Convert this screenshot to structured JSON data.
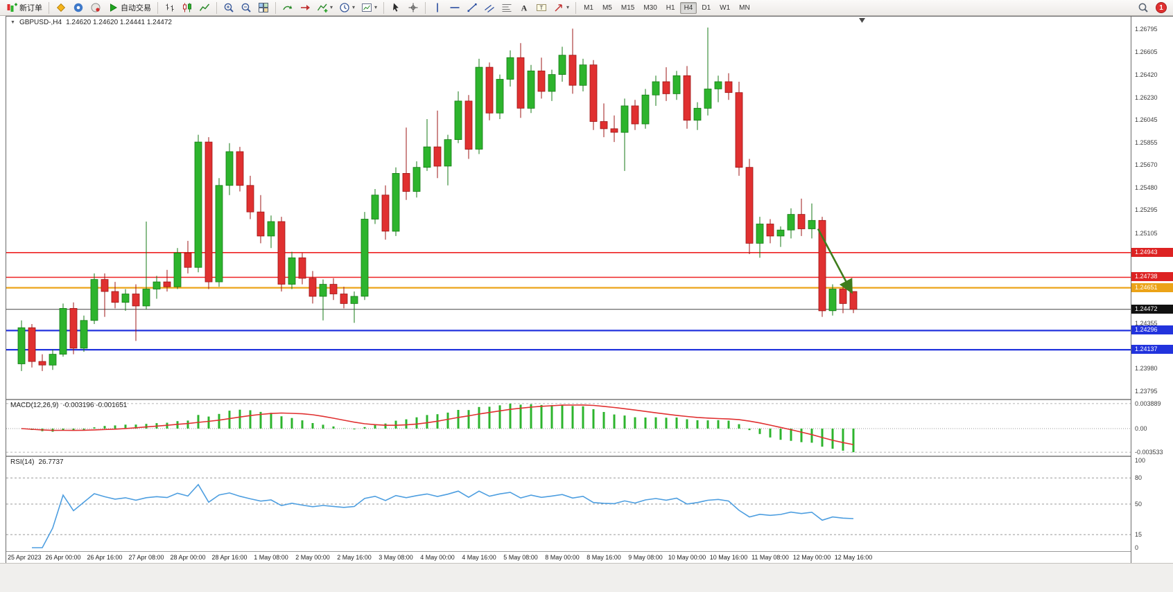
{
  "toolbar": {
    "new_order_label": "新订单",
    "autotrading_label": "自动交易",
    "timeframes": [
      "M1",
      "M5",
      "M15",
      "M30",
      "H1",
      "H4",
      "D1",
      "W1",
      "MN"
    ],
    "active_timeframe": "H4",
    "notification_count": "1"
  },
  "chart": {
    "symbol": "GBPUSD-,H4",
    "ohlc": "1.24620 1.24620 1.24441 1.24472",
    "yrange": {
      "max": 1.269,
      "min": 1.2373
    },
    "colors": {
      "up": "#2db42d",
      "up_edge": "#157a15",
      "down": "#e03030",
      "down_edge": "#9c1414",
      "arrow": "#3e7d1c"
    },
    "price_axis": [
      "1.26795",
      "1.26605",
      "1.26420",
      "1.26230",
      "1.26045",
      "1.25855",
      "1.25670",
      "1.25480",
      "1.25295",
      "1.25105",
      "1.24355",
      "1.23980",
      "1.23795"
    ],
    "price_tags": [
      {
        "t": "1.24943",
        "bg": "#dd2222",
        "line": "#ee2222",
        "lw": 1.6
      },
      {
        "t": "1.24738",
        "bg": "#dd2222",
        "line": "#ee2222",
        "lw": 1.6
      },
      {
        "t": "1.24651",
        "bg": "#eca318",
        "line": "#eca318",
        "lw": 2.2
      },
      {
        "t": "1.24472",
        "bg": "#111111",
        "line": "#444444",
        "lw": 1
      },
      {
        "t": "1.24296",
        "bg": "#2233dd",
        "line": "#2233dd",
        "lw": 2.2
      },
      {
        "t": "1.24137",
        "bg": "#2233dd",
        "line": "#2233dd",
        "lw": 2.2
      }
    ],
    "arrow": {
      "i1": 76.6,
      "p1": 1.2514,
      "i2": 79.8,
      "p2": 1.2462
    },
    "candles": [
      [
        1.2402,
        1.2438,
        1.2396,
        1.2432
      ],
      [
        1.2432,
        1.2435,
        1.2399,
        1.2404
      ],
      [
        1.2404,
        1.241,
        1.2396,
        1.2401
      ],
      [
        1.2401,
        1.2414,
        1.2397,
        1.241
      ],
      [
        1.241,
        1.2452,
        1.2408,
        1.2448
      ],
      [
        1.2448,
        1.2453,
        1.241,
        1.2415
      ],
      [
        1.2415,
        1.2442,
        1.2412,
        1.2438
      ],
      [
        1.2438,
        1.2477,
        1.2435,
        1.2472
      ],
      [
        1.2472,
        1.2477,
        1.2441,
        1.2462
      ],
      [
        1.2462,
        1.247,
        1.2448,
        1.2453
      ],
      [
        1.2453,
        1.2464,
        1.2446,
        1.246
      ],
      [
        1.246,
        1.2468,
        1.2421,
        1.245
      ],
      [
        1.245,
        1.252,
        1.2447,
        1.2464
      ],
      [
        1.2464,
        1.2475,
        1.2456,
        1.247
      ],
      [
        1.247,
        1.248,
        1.2462,
        1.2466
      ],
      [
        1.2466,
        1.2498,
        1.2464,
        1.2494
      ],
      [
        1.2494,
        1.2504,
        1.2477,
        1.2482
      ],
      [
        1.2482,
        1.2592,
        1.2478,
        1.2586
      ],
      [
        1.2586,
        1.259,
        1.2464,
        1.247
      ],
      [
        1.247,
        1.2556,
        1.2466,
        1.255
      ],
      [
        1.255,
        1.2585,
        1.2542,
        1.2578
      ],
      [
        1.2578,
        1.2582,
        1.2545,
        1.255
      ],
      [
        1.255,
        1.2558,
        1.2522,
        1.2528
      ],
      [
        1.2528,
        1.2542,
        1.2502,
        1.2508
      ],
      [
        1.2508,
        1.2525,
        1.2498,
        1.252
      ],
      [
        1.252,
        1.2524,
        1.2462,
        1.2468
      ],
      [
        1.2468,
        1.2495,
        1.2464,
        1.249
      ],
      [
        1.249,
        1.2494,
        1.2468,
        1.2473
      ],
      [
        1.2473,
        1.2479,
        1.2452,
        1.2458
      ],
      [
        1.2458,
        1.2472,
        1.2438,
        1.2468
      ],
      [
        1.2468,
        1.2473,
        1.2455,
        1.246
      ],
      [
        1.246,
        1.2466,
        1.2448,
        1.2452
      ],
      [
        1.2452,
        1.2462,
        1.2436,
        1.2458
      ],
      [
        1.2458,
        1.2528,
        1.2455,
        1.2522
      ],
      [
        1.2522,
        1.2547,
        1.2518,
        1.2542
      ],
      [
        1.2542,
        1.255,
        1.2505,
        1.2512
      ],
      [
        1.2512,
        1.2565,
        1.2508,
        1.256
      ],
      [
        1.256,
        1.2598,
        1.2538,
        1.2545
      ],
      [
        1.2545,
        1.257,
        1.254,
        1.2565
      ],
      [
        1.2565,
        1.2605,
        1.2562,
        1.2582
      ],
      [
        1.2582,
        1.2612,
        1.2556,
        1.2566
      ],
      [
        1.2566,
        1.2592,
        1.255,
        1.2588
      ],
      [
        1.2588,
        1.2628,
        1.2585,
        1.262
      ],
      [
        1.262,
        1.2625,
        1.2572,
        1.258
      ],
      [
        1.258,
        1.2655,
        1.2576,
        1.2648
      ],
      [
        1.2648,
        1.2652,
        1.2604,
        1.261
      ],
      [
        1.261,
        1.2642,
        1.2605,
        1.2638
      ],
      [
        1.2638,
        1.2662,
        1.2632,
        1.2656
      ],
      [
        1.2656,
        1.2668,
        1.2606,
        1.2614
      ],
      [
        1.2614,
        1.265,
        1.261,
        1.2645
      ],
      [
        1.2645,
        1.2656,
        1.2622,
        1.2628
      ],
      [
        1.2628,
        1.2646,
        1.262,
        1.2642
      ],
      [
        1.2642,
        1.2665,
        1.2636,
        1.2658
      ],
      [
        1.2658,
        1.268,
        1.2626,
        1.2633
      ],
      [
        1.2633,
        1.2655,
        1.2628,
        1.265
      ],
      [
        1.265,
        1.2654,
        1.2596,
        1.2603
      ],
      [
        1.2603,
        1.2618,
        1.259,
        1.2597
      ],
      [
        1.2597,
        1.2608,
        1.2586,
        1.2594
      ],
      [
        1.2594,
        1.2622,
        1.2562,
        1.2616
      ],
      [
        1.2616,
        1.2621,
        1.2596,
        1.2601
      ],
      [
        1.2601,
        1.263,
        1.2597,
        1.2625
      ],
      [
        1.2625,
        1.2641,
        1.2616,
        1.2636
      ],
      [
        1.2636,
        1.2648,
        1.262,
        1.2626
      ],
      [
        1.2626,
        1.2645,
        1.2621,
        1.2641
      ],
      [
        1.2641,
        1.2649,
        1.2597,
        1.2604
      ],
      [
        1.2604,
        1.2619,
        1.2596,
        1.2614
      ],
      [
        1.2614,
        1.2681,
        1.2608,
        1.263
      ],
      [
        1.263,
        1.2641,
        1.2619,
        1.2636
      ],
      [
        1.2636,
        1.2643,
        1.2621,
        1.2627
      ],
      [
        1.2627,
        1.2636,
        1.2558,
        1.2565
      ],
      [
        1.2565,
        1.2572,
        1.2493,
        1.2502
      ],
      [
        1.2502,
        1.2524,
        1.249,
        1.2518
      ],
      [
        1.2518,
        1.2522,
        1.2502,
        1.2508
      ],
      [
        1.2508,
        1.2516,
        1.2499,
        1.2513
      ],
      [
        1.2513,
        1.2531,
        1.2506,
        1.2526
      ],
      [
        1.2526,
        1.2539,
        1.2508,
        1.2514
      ],
      [
        1.2514,
        1.2535,
        1.2506,
        1.2521
      ],
      [
        1.2521,
        1.2524,
        1.2441,
        1.2446
      ],
      [
        1.2446,
        1.2468,
        1.2442,
        1.2464
      ],
      [
        1.2464,
        1.2466,
        1.2444,
        1.2452
      ],
      [
        1.2462,
        1.2462,
        1.24441,
        1.24472
      ]
    ],
    "time_labels": [
      {
        "i": 0,
        "t": "25 Apr 2023"
      },
      {
        "i": 4,
        "t": "26 Apr 00:00"
      },
      {
        "i": 8,
        "t": "26 Apr 16:00"
      },
      {
        "i": 12,
        "t": "27 Apr 08:00"
      },
      {
        "i": 16,
        "t": "28 Apr 00:00"
      },
      {
        "i": 20,
        "t": "28 Apr 16:00"
      },
      {
        "i": 24,
        "t": "1 May 08:00"
      },
      {
        "i": 28,
        "t": "2 May 00:00"
      },
      {
        "i": 32,
        "t": "2 May 16:00"
      },
      {
        "i": 36,
        "t": "3 May 08:00"
      },
      {
        "i": 40,
        "t": "4 May 00:00"
      },
      {
        "i": 44,
        "t": "4 May 16:00"
      },
      {
        "i": 48,
        "t": "5 May 08:00"
      },
      {
        "i": 52,
        "t": "8 May 00:00"
      },
      {
        "i": 56,
        "t": "8 May 16:00"
      },
      {
        "i": 60,
        "t": "9 May 08:00"
      },
      {
        "i": 64,
        "t": "10 May 00:00"
      },
      {
        "i": 68,
        "t": "10 May 16:00"
      },
      {
        "i": 72,
        "t": "11 May 08:00"
      },
      {
        "i": 76,
        "t": "12 May 00:00"
      },
      {
        "i": 80,
        "t": "12 May 16:00"
      }
    ]
  },
  "macd": {
    "header_name": "MACD(12,26,9)",
    "header_values": "-0.003196 -0.001651",
    "fast": 12,
    "slow": 26,
    "signal": 9,
    "axis_top": "0.003889",
    "axis_zero": "0.00",
    "axis_bottom": "-0.003533",
    "hist_color": "#2db42d",
    "signal_color": "#e03030"
  },
  "rsi": {
    "header_name": "RSI(14)",
    "header_value": "26.7737",
    "period": 14,
    "levels": [
      80,
      50,
      15
    ],
    "axis_labels": [
      {
        "v": 100,
        "t": "100"
      },
      {
        "v": 80,
        "t": "80"
      },
      {
        "v": 50,
        "t": "50"
      },
      {
        "v": 15,
        "t": "15"
      },
      {
        "v": 0,
        "t": "0"
      }
    ],
    "line_color": "#4d9ee0"
  }
}
